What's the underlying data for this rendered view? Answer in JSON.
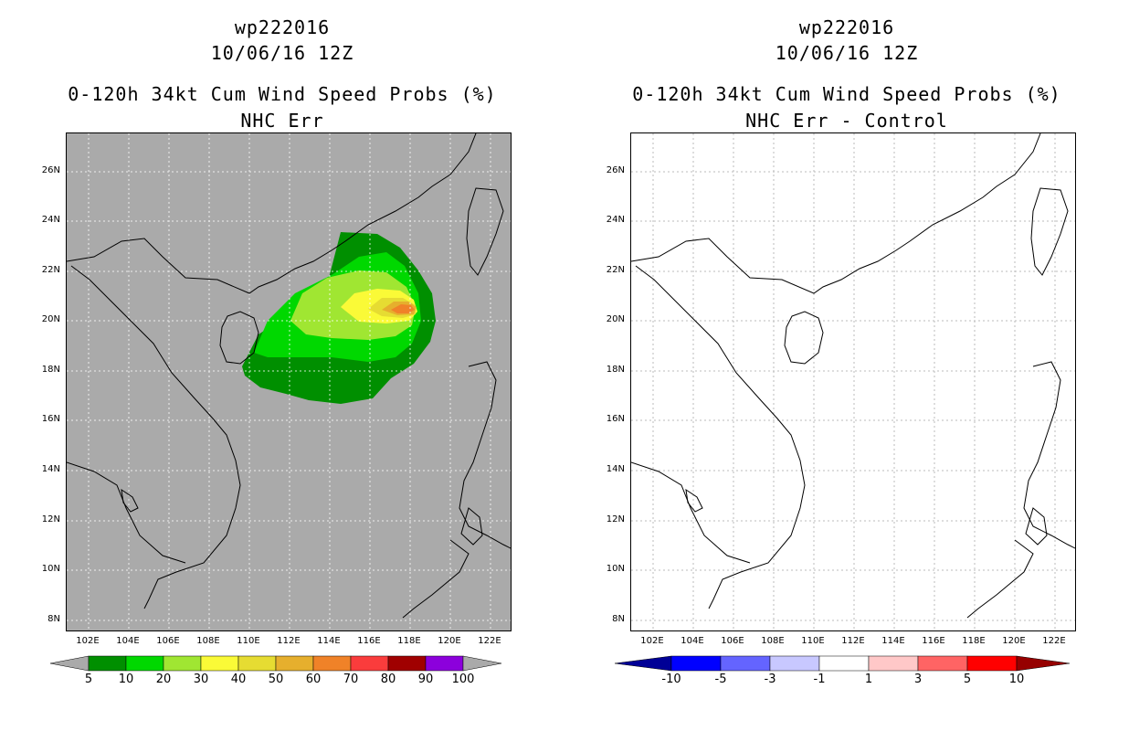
{
  "left_panel": {
    "title_line1": "wp222016",
    "title_line2": "10/06/16 12Z",
    "title_line3": "0-120h 34kt Cum Wind Speed Probs (%)",
    "title_line4": "NHC Err",
    "background_color": "#aaaaaa",
    "colorbar": {
      "labels": [
        "5",
        "10",
        "20",
        "30",
        "40",
        "50",
        "60",
        "70",
        "80",
        "90",
        "100"
      ],
      "colors": [
        "#008f00",
        "#00d800",
        "#a0e632",
        "#fafa37",
        "#e6dc32",
        "#e6af2d",
        "#f08228",
        "#fa3c3c",
        "#a00000",
        "#8c00dc"
      ],
      "end_color": "#aaaaaa"
    }
  },
  "right_panel": {
    "title_line1": "wp222016",
    "title_line2": "10/06/16 12Z",
    "title_line3": "0-120h 34kt Cum Wind Speed Probs (%)",
    "title_line4": "NHC Err - Control",
    "background_color": "#ffffff",
    "colorbar": {
      "labels": [
        "-10",
        "-5",
        "-3",
        "-1",
        "1",
        "3",
        "5",
        "10"
      ],
      "colors": [
        "#0000ff",
        "#6464ff",
        "#c8c8ff",
        "#ffffff",
        "#ffc8c8",
        "#ff6464",
        "#ff0000"
      ],
      "low_end_color": "#000096",
      "high_end_color": "#960000"
    }
  },
  "map": {
    "lat_labels": [
      "26N",
      "24N",
      "22N",
      "20N",
      "18N",
      "16N",
      "14N",
      "12N",
      "10N",
      "8N"
    ],
    "lon_labels": [
      "102E",
      "104E",
      "106E",
      "108E",
      "110E",
      "112E",
      "114E",
      "116E",
      "118E",
      "120E",
      "122E"
    ]
  }
}
